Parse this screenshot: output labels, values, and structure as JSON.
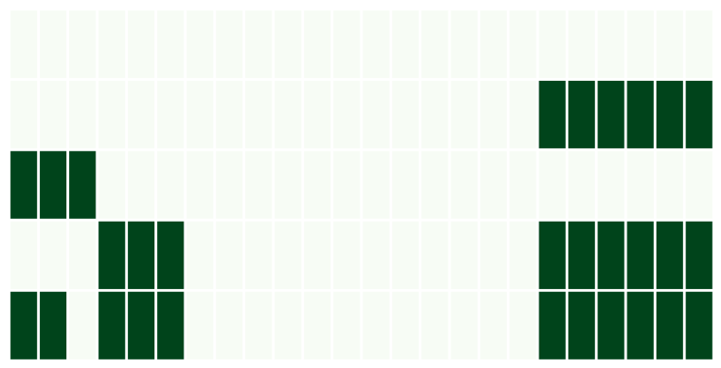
{
  "chart_data": {
    "type": "heatmap",
    "rows": 5,
    "cols": 24,
    "value_range": [
      0,
      1
    ],
    "colors": {
      "low": "#f7fcf5",
      "high": "#00441b",
      "gap": "#ffffff"
    },
    "grid": false,
    "legend": "none",
    "values": [
      [
        0,
        0,
        0,
        0,
        0,
        0,
        0,
        0,
        0,
        0,
        0,
        0,
        0,
        0,
        0,
        0,
        0,
        0,
        0,
        0,
        0,
        0,
        0,
        0
      ],
      [
        0,
        0,
        0,
        0,
        0,
        0,
        0,
        0,
        0,
        0,
        0,
        0,
        0,
        0,
        0,
        0,
        0,
        0,
        1,
        1,
        1,
        1,
        1,
        1
      ],
      [
        1,
        1,
        1,
        0,
        0,
        0,
        0,
        0,
        0,
        0,
        0,
        0,
        0,
        0,
        0,
        0,
        0,
        0,
        0,
        0,
        0,
        0,
        0,
        0
      ],
      [
        0,
        0,
        0,
        1,
        1,
        1,
        0,
        0,
        0,
        0,
        0,
        0,
        0,
        0,
        0,
        0,
        0,
        0,
        1,
        1,
        1,
        1,
        1,
        1
      ],
      [
        1,
        1,
        0,
        1,
        1,
        1,
        0,
        0,
        0,
        0,
        0,
        0,
        0,
        0,
        0,
        0,
        0,
        0,
        1,
        1,
        1,
        1,
        1,
        1
      ]
    ]
  }
}
